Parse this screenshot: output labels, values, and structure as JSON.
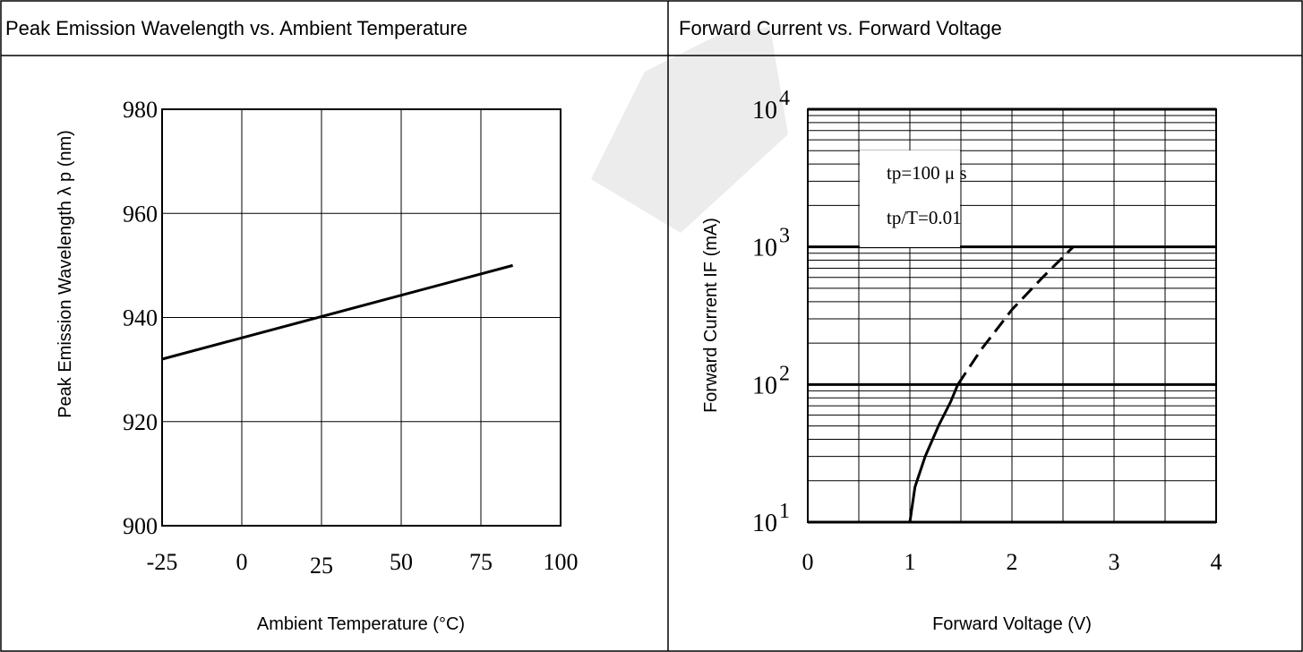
{
  "panels": {
    "left_title": "Peak Emission Wavelength vs. Ambient Temperature",
    "right_title": "Forward Current vs. Forward Voltage"
  },
  "colors": {
    "line": "#000000",
    "grid": "#000000",
    "watermark": "#e8e8e8",
    "background": "#ffffff"
  },
  "chart_data": [
    {
      "type": "line",
      "title": "Peak Emission Wavelength vs. Ambient Temperature",
      "xlabel": "Ambient Temperature (°C)",
      "ylabel": "Peak Emission Wavelength  λ p (nm)",
      "xlim": [
        -25,
        100
      ],
      "ylim": [
        900,
        980
      ],
      "x_ticks": [
        "-25",
        "0",
        "25",
        "50",
        "75",
        "100"
      ],
      "y_ticks": [
        "900",
        "920",
        "940",
        "960",
        "980"
      ],
      "grid": true,
      "series": [
        {
          "x": [
            -25,
            85
          ],
          "y": [
            932,
            950
          ],
          "style": "solid"
        }
      ]
    },
    {
      "type": "line",
      "title": "Forward Current vs. Forward Voltage",
      "xlabel": "Forward Voltage (V)",
      "ylabel": "Forward Current IF (mA)",
      "xlim": [
        0,
        4
      ],
      "ylim": [
        10,
        10000
      ],
      "y_scale": "log",
      "x_ticks": [
        "0",
        "1",
        "2",
        "3",
        "4"
      ],
      "y_ticks": [
        {
          "base": "10",
          "exp": "1"
        },
        {
          "base": "10",
          "exp": "2"
        },
        {
          "base": "10",
          "exp": "3"
        },
        {
          "base": "10",
          "exp": "4"
        }
      ],
      "grid": true,
      "annotations": [
        "tp=100 μ s",
        "tp/T=0.01"
      ],
      "series": [
        {
          "x": [
            1.0,
            1.05,
            1.15,
            1.28,
            1.4,
            1.47
          ],
          "y": [
            10,
            18,
            30,
            50,
            75,
            100
          ],
          "style": "solid"
        },
        {
          "x": [
            1.47,
            1.7,
            2.0,
            2.3,
            2.6
          ],
          "y": [
            100,
            180,
            350,
            600,
            1000
          ],
          "style": "dashed"
        }
      ]
    }
  ]
}
